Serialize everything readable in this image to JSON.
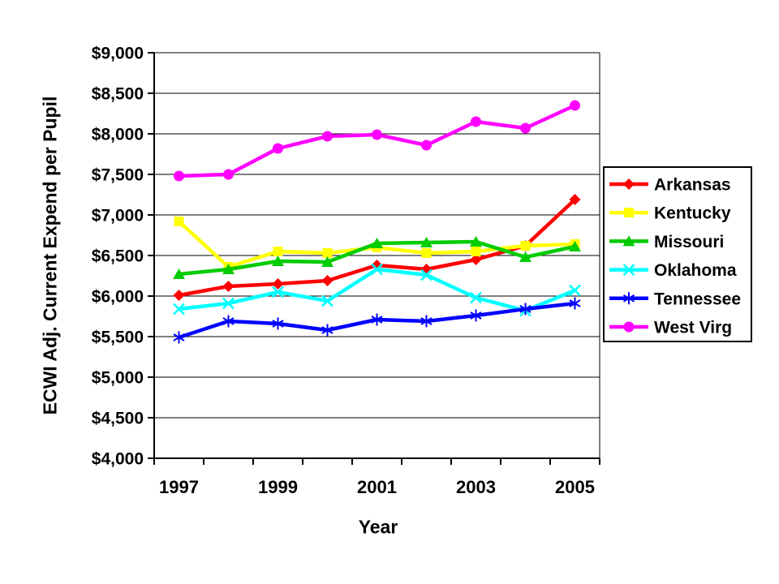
{
  "chart_data": {
    "type": "line",
    "title": "",
    "xlabel": "Year",
    "ylabel": "ECWI Adj. Current Expend per Pupil",
    "x": [
      "1997",
      "1998",
      "1999",
      "2000",
      "2001",
      "2002",
      "2003",
      "2004",
      "2005"
    ],
    "x_tick_labels": [
      "1997",
      "1999",
      "2001",
      "2003",
      "2005"
    ],
    "ylim": [
      4000,
      9000
    ],
    "ytick_interval": 500,
    "y_tick_labels": [
      "$4,000",
      "$4,500",
      "$5,000",
      "$5,500",
      "$6,000",
      "$6,500",
      "$7,000",
      "$7,500",
      "$8,000",
      "$8,500",
      "$9,000"
    ],
    "grid": "horizontal",
    "legend_position": "right",
    "series": [
      {
        "name": "Arkansas",
        "color": "#FF0000",
        "marker": "diamond",
        "values": [
          6010,
          6120,
          6150,
          6190,
          6380,
          6330,
          6450,
          6620,
          7190
        ]
      },
      {
        "name": "Kentucky",
        "color": "#FFFF00",
        "marker": "square",
        "values": [
          6920,
          6360,
          6550,
          6530,
          6600,
          6530,
          6550,
          6620,
          6640
        ]
      },
      {
        "name": "Missouri",
        "color": "#00CC00",
        "marker": "triangle",
        "values": [
          6270,
          6330,
          6430,
          6420,
          6650,
          6660,
          6670,
          6480,
          6610
        ]
      },
      {
        "name": "Oklahoma",
        "color": "#00FFFF",
        "marker": "x",
        "values": [
          5840,
          5910,
          6050,
          5940,
          6330,
          6260,
          5980,
          5820,
          6070
        ]
      },
      {
        "name": "Tennessee",
        "color": "#0000FF",
        "marker": "asterisk",
        "values": [
          5490,
          5690,
          5660,
          5580,
          5710,
          5690,
          5760,
          5840,
          5910
        ]
      },
      {
        "name": "West Virg",
        "color": "#FF00FF",
        "marker": "circle",
        "values": [
          7480,
          7500,
          7820,
          7970,
          7990,
          7860,
          8150,
          8070,
          8350
        ]
      }
    ]
  }
}
